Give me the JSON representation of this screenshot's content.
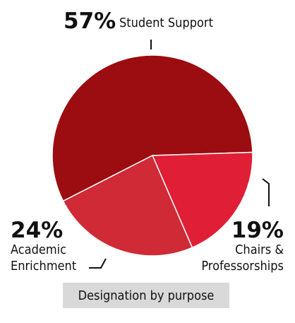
{
  "chart_data": {
    "type": "pie",
    "caption": "Designation by purpose",
    "slices": [
      {
        "pct_label": "57%",
        "label_lines": [
          "Student Support"
        ],
        "value": 57,
        "color": "#9b0d10"
      },
      {
        "pct_label": "19%",
        "label_lines": [
          "Chairs &",
          "Professorships"
        ],
        "value": 19,
        "color": "#e01e35"
      },
      {
        "pct_label": "24%",
        "label_lines": [
          "Academic",
          "Enrichment"
        ],
        "value": 24,
        "color": "#cf2a36"
      }
    ]
  }
}
